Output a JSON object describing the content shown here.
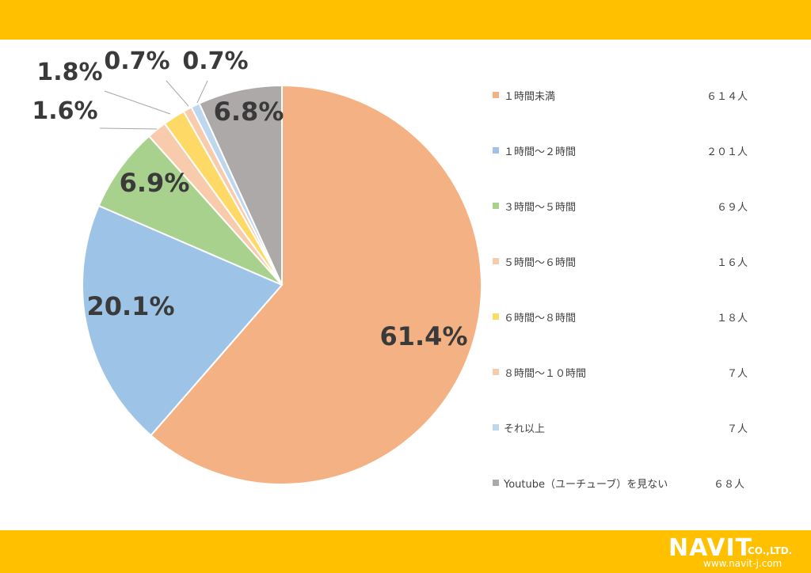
{
  "chart_data": {
    "type": "pie",
    "slices": [
      {
        "label": "１時間未満",
        "value": 61.4,
        "percent_label": "61.4%",
        "count": "６１４人",
        "color": "#F4B183"
      },
      {
        "label": "１時間～２時間",
        "value": 20.1,
        "percent_label": "20.1%",
        "count": "２０１人",
        "color": "#9DC3E6"
      },
      {
        "label": "３時間～５時間",
        "value": 6.9,
        "percent_label": "6.9%",
        "count": "６９人",
        "color": "#A9D18E"
      },
      {
        "label": "５時間～６時間",
        "value": 1.6,
        "percent_label": "1.6%",
        "count": "１６人",
        "color": "#F8CBAD"
      },
      {
        "label": "６時間～８時間",
        "value": 1.8,
        "percent_label": "1.8%",
        "count": "１８人",
        "color": "#FFD966"
      },
      {
        "label": "８時間～１０時間",
        "value": 0.7,
        "percent_label": "0.7%",
        "count": "７人",
        "color": "#F8CBAD"
      },
      {
        "label": "それ以上",
        "value": 0.7,
        "percent_label": "0.7%",
        "count": "７人",
        "color": "#BDD7EE"
      },
      {
        "label": "Youtube（ユーチューブ）を見ない",
        "value": 6.8,
        "percent_label": "6.8%",
        "count": "６８人",
        "color": "#ADA9A9"
      }
    ],
    "legend_position": "right"
  },
  "brand": {
    "logo_text": "NAVIT",
    "logo_suffix": "CO.,LTD.",
    "url": "www.navit-j.com"
  },
  "colors": {
    "band": "#FFC000"
  }
}
